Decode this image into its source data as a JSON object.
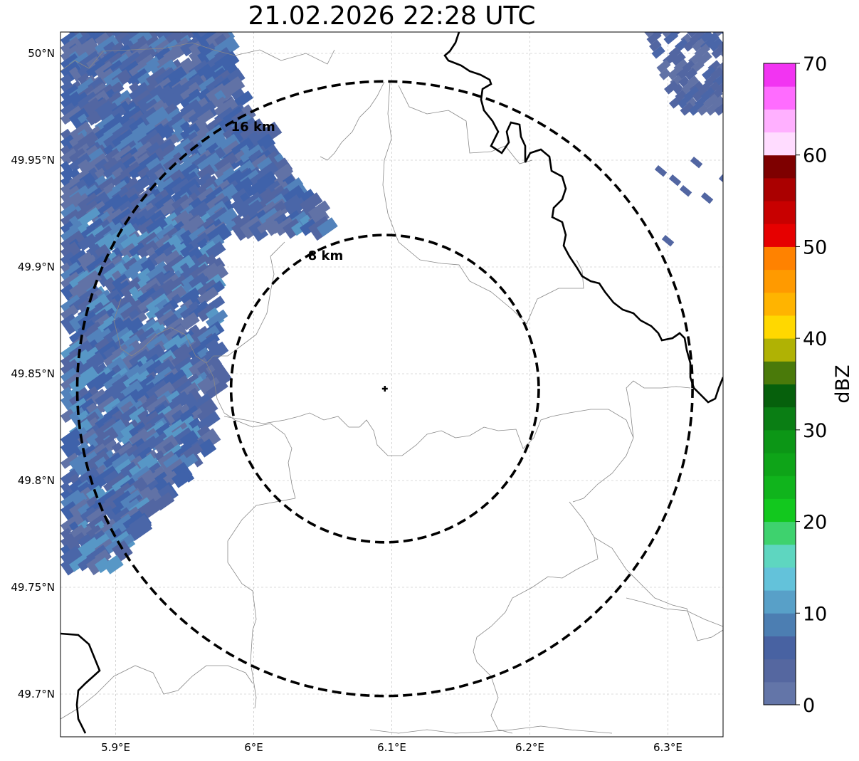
{
  "title": "21.02.2026 22:28 UTC",
  "extent": {
    "lon_min": 5.86,
    "lon_max": 6.34,
    "lat_min": 49.68,
    "lat_max": 50.01
  },
  "lon_ticks": [
    {
      "value": 5.9,
      "label": "5.9°E"
    },
    {
      "value": 6.0,
      "label": "6°E"
    },
    {
      "value": 6.1,
      "label": "6.1°E"
    },
    {
      "value": 6.2,
      "label": "6.2°E"
    },
    {
      "value": 6.3,
      "label": "6.3°E"
    }
  ],
  "lat_ticks": [
    {
      "value": 50.0,
      "label": "50°N"
    },
    {
      "value": 49.95,
      "label": "49.95°N"
    },
    {
      "value": 49.9,
      "label": "49.9°N"
    },
    {
      "value": 49.85,
      "label": "49.85°N"
    },
    {
      "value": 49.8,
      "label": "49.8°N"
    },
    {
      "value": 49.75,
      "label": "49.75°N"
    },
    {
      "value": 49.7,
      "label": "49.7°N"
    }
  ],
  "center": {
    "lon": 6.095,
    "lat": 49.843
  },
  "range_rings": [
    {
      "radius_km": 8,
      "label": "8 km"
    },
    {
      "radius_km": 16,
      "label": "16 km"
    }
  ],
  "colorbar": {
    "label": "dBZ",
    "min": 0,
    "max": 70,
    "ticks": [
      0,
      10,
      20,
      30,
      40,
      50,
      60,
      70
    ],
    "bins": [
      "#6375a8",
      "#5567a0",
      "#4862a2",
      "#4c7eb2",
      "#58a0c8",
      "#63c2da",
      "#5ed6c0",
      "#3ed26e",
      "#12c81e",
      "#10b41c",
      "#0ea418",
      "#0c9616",
      "#0a7e14",
      "#06600c",
      "#4a7a0a",
      "#b0b204",
      "#ffd800",
      "#ffb400",
      "#ff9a00",
      "#ff8200",
      "#e60000",
      "#c80000",
      "#aa0000",
      "#7e0000",
      "#ffdcff",
      "#ffb0ff",
      "#ff6cff",
      "#f234f2"
    ]
  },
  "precip_colors": [
    "#6172a6",
    "#5266a2",
    "#4a66a8",
    "#3f62aa",
    "#5282bb",
    "#5797c6"
  ]
}
